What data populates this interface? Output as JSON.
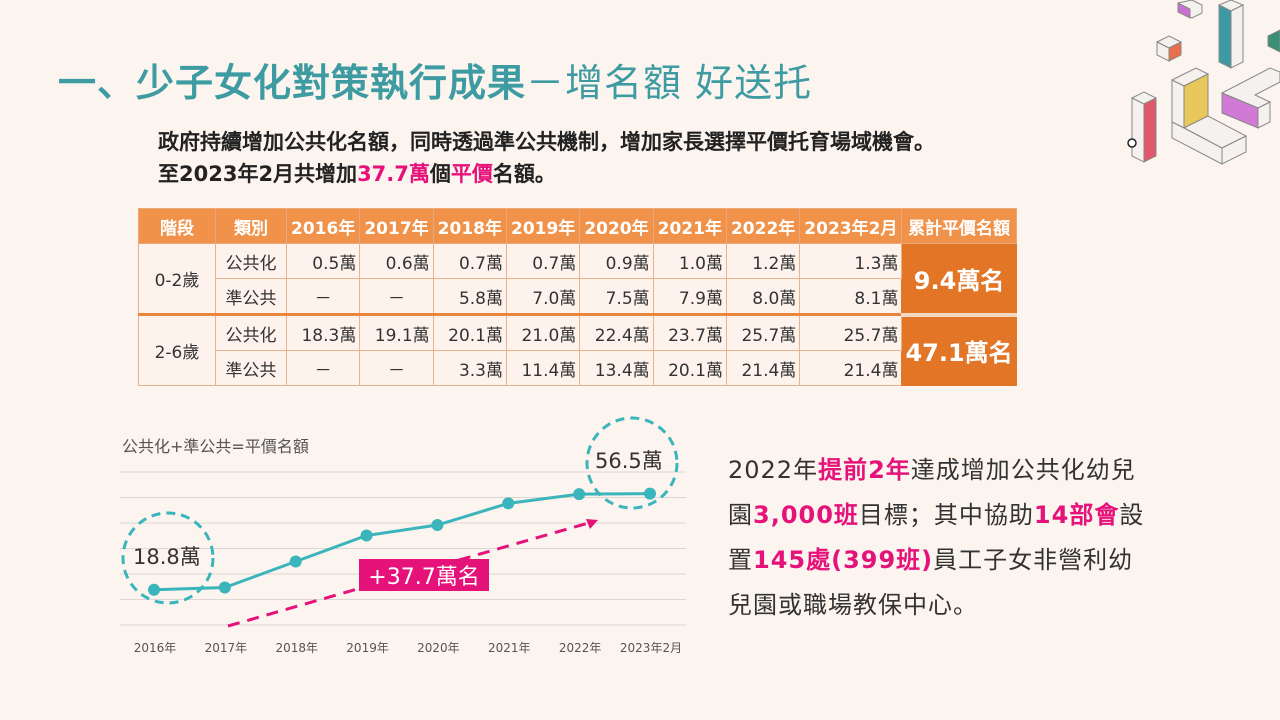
{
  "title": {
    "bold": "一、少子女化對策執行成果",
    "light": "－增名額 好送托"
  },
  "intro": {
    "line1": "政府持續增加公共化名額，同時透過準公共機制，增加家長選擇平價托育場域機會。",
    "line2_pre": "至2023年2月共增加",
    "line2_hl1": "37.7萬",
    "line2_mid": "個",
    "line2_hl2": "平價",
    "line2_post": "名額。"
  },
  "table": {
    "headers": [
      "階段",
      "類別",
      "2016年",
      "2017年",
      "2018年",
      "2019年",
      "2020年",
      "2021年",
      "2022年",
      "2023年2月",
      "累計平價名額"
    ],
    "groups": [
      {
        "stage": "0-2歲",
        "total": "9.4萬名",
        "rows": [
          {
            "category": "公共化",
            "values": [
              "0.5萬",
              "0.6萬",
              "0.7萬",
              "0.7萬",
              "0.9萬",
              "1.0萬",
              "1.2萬",
              "1.3萬"
            ]
          },
          {
            "category": "準公共",
            "values": [
              "－",
              "－",
              "5.8萬",
              "7.0萬",
              "7.5萬",
              "7.9萬",
              "8.0萬",
              "8.1萬"
            ]
          }
        ]
      },
      {
        "stage": "2-6歲",
        "total": "47.1萬名",
        "rows": [
          {
            "category": "公共化",
            "values": [
              "18.3萬",
              "19.1萬",
              "20.1萬",
              "21.0萬",
              "22.4萬",
              "23.7萬",
              "25.7萬",
              "25.7萬"
            ]
          },
          {
            "category": "準公共",
            "values": [
              "－",
              "－",
              "3.3萬",
              "11.4萬",
              "13.4萬",
              "20.1萬",
              "21.4萬",
              "21.4萬"
            ]
          }
        ]
      }
    ]
  },
  "chart_data": {
    "type": "line",
    "title": "公共化+準公共=平價名額",
    "categories": [
      "2016年",
      "2017年",
      "2018年",
      "2019年",
      "2020年",
      "2021年",
      "2022年",
      "2023年2月"
    ],
    "series": [
      {
        "name": "平價名額(萬)",
        "values": [
          18.8,
          19.7,
          29.9,
          40.1,
          44.2,
          52.7,
          56.3,
          56.5
        ]
      }
    ],
    "ylim": [
      5,
      65
    ],
    "grid": true,
    "annotations": {
      "start_label": "18.8萬",
      "end_label": "56.5萬",
      "increase_label": "+37.7萬名"
    },
    "colors": {
      "line": "#3ab5bb",
      "arrow": "#e5127a",
      "grid": "#ddd6d2"
    }
  },
  "side_text": {
    "parts": [
      {
        "t": "2022年",
        "hl": false
      },
      {
        "t": "提前2年",
        "hl": true
      },
      {
        "t": "達成增加公共化幼兒園",
        "hl": false
      },
      {
        "t": "3,000班",
        "hl": true
      },
      {
        "t": "目標；其中協助",
        "hl": false
      },
      {
        "t": "14部會",
        "hl": true
      },
      {
        "t": "設置",
        "hl": false
      },
      {
        "t": "145處(399班)",
        "hl": true
      },
      {
        "t": "員工子女非營利幼兒園或職場教保中心。",
        "hl": false
      }
    ]
  }
}
